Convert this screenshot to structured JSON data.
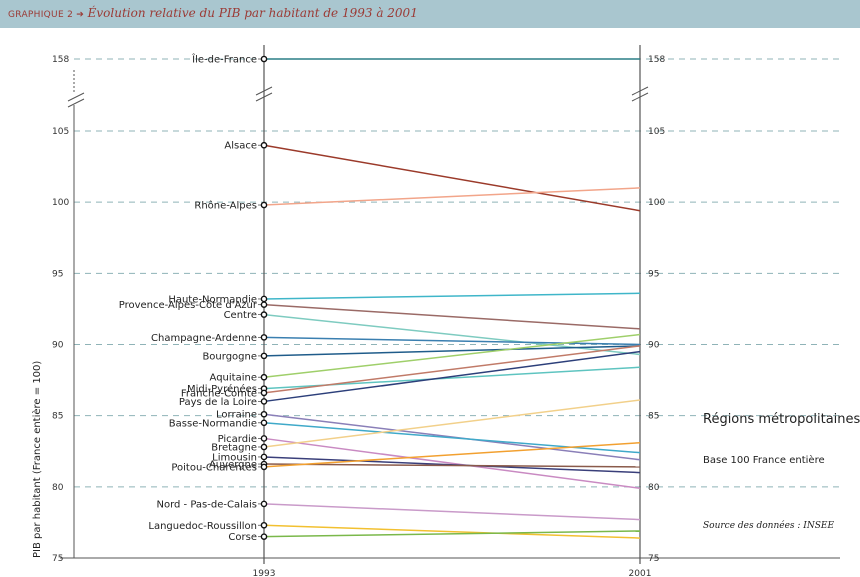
{
  "banner": {
    "prefix": "GRAPHIQUE 2 ➔",
    "title": "Évolution relative du PIB par habitant de 1993 à 2001"
  },
  "side": {
    "title": "Régions métropolitaines",
    "base": "Base 100 France entière",
    "source": "Source des données : INSEE"
  },
  "colors": {
    "gridline": "#8fb3b7",
    "axis": "#555555",
    "banner_bg": "#a9c6cf",
    "banner_text": "#9b3a35"
  },
  "chart_data": {
    "type": "line",
    "x": [
      "1993",
      "2001"
    ],
    "ylabel": "PIB par habitant (France entière = 100)",
    "yticks": [
      75,
      80,
      85,
      90,
      95,
      100,
      105,
      158
    ],
    "ylim": [
      75,
      105
    ],
    "axis_break": [
      105,
      158
    ],
    "grid": true,
    "series": [
      {
        "name": "Île-de-France",
        "values": [
          158,
          158
        ],
        "color": "#2a7f86"
      },
      {
        "name": "Alsace",
        "values": [
          104,
          99.4
        ],
        "color": "#9b3a2a"
      },
      {
        "name": "Rhône-Alpes",
        "values": [
          99.8,
          101
        ],
        "color": "#f2a58a"
      },
      {
        "name": "Haute-Normandie",
        "values": [
          93.2,
          93.6
        ],
        "color": "#3fb6c9"
      },
      {
        "name": "Provence-Alpes-Côte d'Azur",
        "values": [
          92.8,
          91.1
        ],
        "color": "#9a6a66"
      },
      {
        "name": "Centre",
        "values": [
          92.1,
          89.3
        ],
        "color": "#7ecbc0"
      },
      {
        "name": "Champagne-Ardenne",
        "values": [
          90.5,
          90
        ],
        "color": "#3a7fb0"
      },
      {
        "name": "Bourgogne",
        "values": [
          89.2,
          89.9
        ],
        "color": "#1f5c8a"
      },
      {
        "name": "Aquitaine",
        "values": [
          87.7,
          90.7
        ],
        "color": "#9fcf6a"
      },
      {
        "name": "Midi-Pyrénées",
        "values": [
          86.9,
          88.4
        ],
        "color": "#5ec4c0"
      },
      {
        "name": "Franche-Comté",
        "values": [
          86.6,
          89.9
        ],
        "color": "#c07a68"
      },
      {
        "name": "Pays de la Loire",
        "values": [
          86,
          89.5
        ],
        "color": "#2c3f7a"
      },
      {
        "name": "Lorraine",
        "values": [
          85.1,
          81.9
        ],
        "color": "#8a7fb8"
      },
      {
        "name": "Basse-Normandie",
        "values": [
          84.5,
          82.4
        ],
        "color": "#3fa9c9"
      },
      {
        "name": "Picardie",
        "values": [
          83.4,
          79.9
        ],
        "color": "#c98ac2"
      },
      {
        "name": "Bretagne",
        "values": [
          82.8,
          86.1
        ],
        "color": "#f2d08a"
      },
      {
        "name": "Limousin",
        "values": [
          82.1,
          81
        ],
        "color": "#3a3f7a"
      },
      {
        "name": "Auvergne",
        "values": [
          81.6,
          81.4
        ],
        "color": "#8a5a4a"
      },
      {
        "name": "Poitou-Charentes",
        "values": [
          81.4,
          83.1
        ],
        "color": "#f2a030"
      },
      {
        "name": "Nord - Pas-de-Calais",
        "values": [
          78.8,
          77.7
        ],
        "color": "#c99ac9"
      },
      {
        "name": "Languedoc-Roussillon",
        "values": [
          77.3,
          76.4
        ],
        "color": "#f2c030"
      },
      {
        "name": "Corse",
        "values": [
          76.5,
          76.9
        ],
        "color": "#7ab84a"
      }
    ]
  }
}
